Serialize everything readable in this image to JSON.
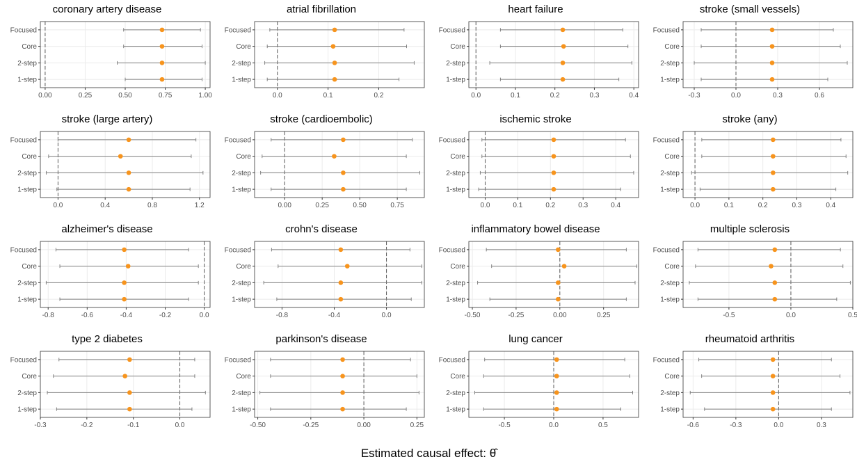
{
  "xlabel": "Estimated causal effect: θ̂",
  "colors": {
    "point": "#F7941D",
    "errorbar": "#808080",
    "grid": "#EBEBEB",
    "frame": "#333333",
    "zero_line": "#5a5a5a"
  },
  "chart_data": [
    {
      "type": "forest",
      "title": "coronary artery disease",
      "categories": [
        "Focused",
        "Core",
        "2-step",
        "1-step"
      ],
      "estimates": [
        0.73,
        0.73,
        0.73,
        0.73
      ],
      "lower": [
        0.49,
        0.49,
        0.45,
        0.5
      ],
      "upper": [
        0.97,
        0.98,
        1.0,
        0.98
      ],
      "xlim": [
        -0.03,
        1.03
      ],
      "ticks": [
        0,
        0.25,
        0.5,
        0.75,
        1
      ],
      "tick_labels": [
        "0.00",
        "0.25",
        "0.50",
        "0.75",
        "1.00"
      ],
      "reference_line": 0,
      "grid": true
    },
    {
      "type": "forest",
      "title": "atrial fibrillation",
      "categories": [
        "Focused",
        "Core",
        "2-step",
        "1-step"
      ],
      "estimates": [
        0.113,
        0.11,
        0.113,
        0.113
      ],
      "lower": [
        -0.015,
        -0.02,
        -0.025,
        -0.02
      ],
      "upper": [
        0.25,
        0.255,
        0.27,
        0.24
      ],
      "xlim": [
        -0.045,
        0.29
      ],
      "ticks": [
        0,
        0.1,
        0.2
      ],
      "tick_labels": [
        "0.0",
        "0.1",
        "0.2"
      ],
      "reference_line": 0,
      "grid": true
    },
    {
      "type": "forest",
      "title": "heart failure",
      "categories": [
        "Focused",
        "Core",
        "2-step",
        "1-step"
      ],
      "estimates": [
        0.22,
        0.222,
        0.22,
        0.22
      ],
      "lower": [
        0.062,
        0.062,
        0.035,
        0.062
      ],
      "upper": [
        0.372,
        0.385,
        0.395,
        0.362
      ],
      "xlim": [
        -0.018,
        0.412
      ],
      "ticks": [
        0,
        0.1,
        0.2,
        0.3,
        0.4
      ],
      "tick_labels": [
        "0.0",
        "0.1",
        "0.2",
        "0.3",
        "0.4"
      ],
      "reference_line": 0,
      "grid": true
    },
    {
      "type": "forest",
      "title": "stroke (small vessels)",
      "categories": [
        "Focused",
        "Core",
        "2-step",
        "1-step"
      ],
      "estimates": [
        0.26,
        0.26,
        0.26,
        0.26
      ],
      "lower": [
        -0.25,
        -0.25,
        -0.3,
        -0.25
      ],
      "upper": [
        0.7,
        0.75,
        0.8,
        0.66
      ],
      "xlim": [
        -0.38,
        0.84
      ],
      "ticks": [
        -0.3,
        0,
        0.3,
        0.6
      ],
      "tick_labels": [
        "-0.3",
        "0.0",
        "0.3",
        "0.6"
      ],
      "reference_line": 0,
      "grid": true
    },
    {
      "type": "forest",
      "title": "stroke (large artery)",
      "categories": [
        "Focused",
        "Core",
        "2-step",
        "1-step"
      ],
      "estimates": [
        0.6,
        0.53,
        0.6,
        0.6
      ],
      "lower": [
        0.0,
        -0.08,
        -0.1,
        -0.01
      ],
      "upper": [
        1.17,
        1.13,
        1.23,
        1.12
      ],
      "xlim": [
        -0.15,
        1.29
      ],
      "ticks": [
        0,
        0.4,
        0.8,
        1.2
      ],
      "tick_labels": [
        "0.0",
        "0.4",
        "0.8",
        "1.2"
      ],
      "reference_line": 0,
      "grid": true
    },
    {
      "type": "forest",
      "title": "stroke (cardioembolic)",
      "categories": [
        "Focused",
        "Core",
        "2-step",
        "1-step"
      ],
      "estimates": [
        0.39,
        0.33,
        0.39,
        0.39
      ],
      "lower": [
        -0.09,
        -0.15,
        -0.16,
        -0.09
      ],
      "upper": [
        0.85,
        0.81,
        0.9,
        0.81
      ],
      "xlim": [
        -0.2,
        0.93
      ],
      "ticks": [
        0,
        0.25,
        0.5,
        0.75
      ],
      "tick_labels": [
        "0.00",
        "0.25",
        "0.50",
        "0.75"
      ],
      "reference_line": 0,
      "grid": true
    },
    {
      "type": "forest",
      "title": "ischemic stroke",
      "categories": [
        "Focused",
        "Core",
        "2-step",
        "1-step"
      ],
      "estimates": [
        0.21,
        0.21,
        0.21,
        0.21
      ],
      "lower": [
        -0.01,
        -0.01,
        -0.015,
        -0.02
      ],
      "upper": [
        0.43,
        0.445,
        0.455,
        0.415
      ],
      "xlim": [
        -0.05,
        0.47
      ],
      "ticks": [
        0,
        0.1,
        0.2,
        0.3,
        0.4
      ],
      "tick_labels": [
        "0.0",
        "0.1",
        "0.2",
        "0.3",
        "0.4"
      ],
      "reference_line": 0,
      "grid": true
    },
    {
      "type": "forest",
      "title": "stroke (any)",
      "categories": [
        "Focused",
        "Core",
        "2-step",
        "1-step"
      ],
      "estimates": [
        0.23,
        0.23,
        0.23,
        0.23
      ],
      "lower": [
        0.02,
        0.02,
        -0.01,
        0.015
      ],
      "upper": [
        0.43,
        0.445,
        0.45,
        0.415
      ],
      "xlim": [
        -0.035,
        0.465
      ],
      "ticks": [
        0,
        0.1,
        0.2,
        0.3,
        0.4
      ],
      "tick_labels": [
        "0.0",
        "0.1",
        "0.2",
        "0.3",
        "0.4"
      ],
      "reference_line": 0,
      "grid": true
    },
    {
      "type": "forest",
      "title": "alzheimer's disease",
      "categories": [
        "Focused",
        "Core",
        "2-step",
        "1-step"
      ],
      "estimates": [
        -0.41,
        -0.39,
        -0.41,
        -0.41
      ],
      "lower": [
        -0.76,
        -0.74,
        -0.81,
        -0.74
      ],
      "upper": [
        -0.08,
        -0.03,
        -0.03,
        -0.08
      ],
      "xlim": [
        -0.84,
        0.03
      ],
      "ticks": [
        -0.8,
        -0.6,
        -0.4,
        -0.2,
        0
      ],
      "tick_labels": [
        "-0.8",
        "-0.6",
        "-0.4",
        "-0.2",
        "0.0"
      ],
      "reference_line": 0,
      "grid": true
    },
    {
      "type": "forest",
      "title": "crohn's disease",
      "categories": [
        "Focused",
        "Core",
        "2-step",
        "1-step"
      ],
      "estimates": [
        -0.35,
        -0.3,
        -0.35,
        -0.35
      ],
      "lower": [
        -0.88,
        -0.83,
        -0.94,
        -0.84
      ],
      "upper": [
        0.18,
        0.27,
        0.27,
        0.19
      ],
      "xlim": [
        -1.01,
        0.29
      ],
      "ticks": [
        -0.8,
        -0.4,
        0
      ],
      "tick_labels": [
        "-0.8",
        "-0.4",
        "0.0"
      ],
      "reference_line": 0,
      "grid": true
    },
    {
      "type": "forest",
      "title": "inflammatory bowel disease",
      "categories": [
        "Focused",
        "Core",
        "2-step",
        "1-step"
      ],
      "estimates": [
        -0.01,
        0.025,
        -0.01,
        -0.01
      ],
      "lower": [
        -0.42,
        -0.39,
        -0.47,
        -0.4
      ],
      "upper": [
        0.38,
        0.44,
        0.43,
        0.38
      ],
      "xlim": [
        -0.52,
        0.45
      ],
      "ticks": [
        -0.5,
        -0.25,
        0,
        0.25
      ],
      "tick_labels": [
        "-0.50",
        "-0.25",
        "0.00",
        "0.25"
      ],
      "reference_line": 0,
      "grid": true
    },
    {
      "type": "forest",
      "title": "multiple sclerosis",
      "categories": [
        "Focused",
        "Core",
        "2-step",
        "1-step"
      ],
      "estimates": [
        -0.13,
        -0.16,
        -0.13,
        -0.13
      ],
      "lower": [
        -0.75,
        -0.77,
        -0.82,
        -0.75
      ],
      "upper": [
        0.4,
        0.42,
        0.48,
        0.37
      ],
      "xlim": [
        -0.87,
        0.5
      ],
      "ticks": [
        -0.5,
        0,
        0.5
      ],
      "tick_labels": [
        "-0.5",
        "0.0",
        "0.5"
      ],
      "reference_line": 0,
      "grid": true
    },
    {
      "type": "forest",
      "title": "type 2 diabetes",
      "categories": [
        "Focused",
        "Core",
        "2-step",
        "1-step"
      ],
      "estimates": [
        -0.108,
        -0.118,
        -0.108,
        -0.108
      ],
      "lower": [
        -0.26,
        -0.272,
        -0.285,
        -0.265
      ],
      "upper": [
        0.032,
        0.032,
        0.055,
        0.026
      ],
      "xlim": [
        -0.3,
        0.065
      ],
      "ticks": [
        -0.3,
        -0.2,
        -0.1,
        0
      ],
      "tick_labels": [
        "-0.3",
        "-0.2",
        "-0.1",
        "0.0"
      ],
      "reference_line": 0,
      "grid": true
    },
    {
      "type": "forest",
      "title": "parkinson's disease",
      "categories": [
        "Focused",
        "Core",
        "2-step",
        "1-step"
      ],
      "estimates": [
        -0.1,
        -0.1,
        -0.1,
        -0.1
      ],
      "lower": [
        -0.44,
        -0.44,
        -0.49,
        -0.44
      ],
      "upper": [
        0.22,
        0.25,
        0.26,
        0.2
      ],
      "xlim": [
        -0.515,
        0.285
      ],
      "ticks": [
        -0.5,
        -0.25,
        0,
        0.25
      ],
      "tick_labels": [
        "-0.50",
        "-0.25",
        "0.00",
        "0.25"
      ],
      "reference_line": 0,
      "grid": true
    },
    {
      "type": "forest",
      "title": "lung cancer",
      "categories": [
        "Focused",
        "Core",
        "2-step",
        "1-step"
      ],
      "estimates": [
        0.03,
        0.03,
        0.03,
        0.03
      ],
      "lower": [
        -0.7,
        -0.71,
        -0.8,
        -0.71
      ],
      "upper": [
        0.72,
        0.77,
        0.8,
        0.68
      ],
      "xlim": [
        -0.86,
        0.86
      ],
      "ticks": [
        -0.5,
        0,
        0.5
      ],
      "tick_labels": [
        "-0.5",
        "0.0",
        "0.5"
      ],
      "reference_line": 0,
      "grid": true
    },
    {
      "type": "forest",
      "title": "rheumatoid arthritis",
      "categories": [
        "Focused",
        "Core",
        "2-step",
        "1-step"
      ],
      "estimates": [
        -0.04,
        -0.04,
        -0.04,
        -0.04
      ],
      "lower": [
        -0.56,
        -0.54,
        -0.62,
        -0.52
      ],
      "upper": [
        0.37,
        0.43,
        0.5,
        0.37
      ],
      "xlim": [
        -0.67,
        0.52
      ],
      "ticks": [
        -0.6,
        -0.3,
        0,
        0.3
      ],
      "tick_labels": [
        "-0.6",
        "-0.3",
        "0.0",
        "0.3"
      ],
      "reference_line": 0,
      "grid": true
    }
  ]
}
